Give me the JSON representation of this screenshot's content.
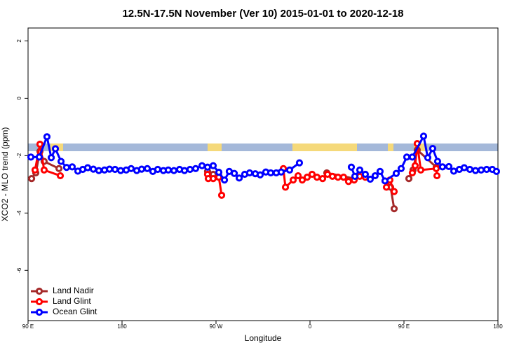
{
  "chart_data": {
    "type": "line",
    "title": "12.5N-17.5N November (Ver 10)   2015-01-01 to 2020-12-18",
    "xlabel": "Longitude",
    "ylabel": "XCO2 - MLO trend (ppm)",
    "xlim": [
      90,
      540
    ],
    "ylim": [
      -7.75,
      2.45
    ],
    "xticks": [
      {
        "value": 90,
        "label": "90 E"
      },
      180,
      {
        "value": 270,
        "label": "90 W"
      },
      {
        "value": 360,
        "label": "0"
      },
      {
        "value": 450,
        "label": "90 E"
      },
      {
        "value": 540,
        "label": "180"
      }
    ],
    "yticks": [
      2,
      0,
      -2,
      -4,
      -6
    ],
    "legend": "bottom-left",
    "series": [
      {
        "name": "Land Nadir",
        "color": "#a52a2a",
        "x": [
          93.4,
          97.4,
          101.4,
          105.4,
          119.6,
          200,
          261.9,
          267.3,
          272.7,
          300,
          376.1,
          402.3,
          420,
          437.2,
          440.6,
          445,
          454.7,
          458.7,
          462.7,
          480.9
        ],
        "values": [
          -2.8,
          -2.6,
          -1.85,
          -2.2,
          -2.45,
          null,
          -2.55,
          -2.65,
          -2.7,
          null,
          -2.6,
          -2.8,
          null,
          -3.1,
          -3.85,
          null,
          -2.8,
          -2.5,
          -1.8,
          -2.4
        ]
      },
      {
        "name": "Land Glint",
        "color": "#ff0000",
        "x": [
          96.7,
          101.4,
          105.4,
          120.9,
          200,
          261.9,
          262.6,
          267.3,
          272.7,
          275.4,
          330,
          334.5,
          336.5,
          343.9,
          348.6,
          352.6,
          357.3,
          362,
          366.7,
          372.1,
          376.8,
          381.5,
          386.8,
          392.2,
          396.9,
          402.3,
          407.7,
          413,
          425,
          433.2,
          436.5,
          440.6,
          445,
          458,
          460.7,
          462.7,
          466.1,
          480.9,
          481.6
        ],
        "values": [
          -2.5,
          -1.6,
          -2.5,
          -2.7,
          null,
          -2.65,
          -2.8,
          -2.8,
          -2.75,
          -3.38,
          null,
          -2.45,
          -3.1,
          -2.85,
          -2.7,
          -2.85,
          -2.75,
          -2.65,
          -2.75,
          -2.8,
          -2.65,
          -2.72,
          -2.75,
          -2.75,
          -2.9,
          -2.85,
          -2.72,
          -2.75,
          null,
          -3.1,
          -2.85,
          -3.25,
          null,
          -2.6,
          -2.35,
          -1.58,
          -2.5,
          -2.45,
          -2.7
        ]
      },
      {
        "name": "Ocean Glint",
        "color": "#0000ff",
        "x": [
          92.7,
          100.7,
          108.1,
          112.2,
          116.2,
          121.6,
          126.9,
          132.3,
          137.7,
          142.4,
          147.1,
          152.5,
          157.8,
          163.2,
          168,
          173.3,
          178.7,
          184,
          188.7,
          194.1,
          198.8,
          204.2,
          209.5,
          214.2,
          219.6,
          224.3,
          229.7,
          235.1,
          239.8,
          245.1,
          250.5,
          256.6,
          261.9,
          267.3,
          272.7,
          278.1,
          282.7,
          287.5,
          292.2,
          297.5,
          302.2,
          307.6,
          312.3,
          317.7,
          322.4,
          327.7,
          332.4,
          340.5,
          349.9,
          400,
          399.6,
          403,
          407.7,
          413,
          417.7,
          422.4,
          427.1,
          431.8,
          442.6,
          447.3,
          452.7,
          458,
          468.8,
          472.8,
          477.5,
          482.2,
          486.9,
          493,
          497.7,
          503,
          507.7,
          513.1,
          518.5,
          523.9,
          529.2,
          534.6,
          538.6
        ],
        "values": [
          -2.05,
          -2.05,
          -1.34,
          -2.07,
          -1.76,
          -2.2,
          -2.41,
          -2.39,
          -2.54,
          -2.48,
          -2.42,
          -2.47,
          -2.52,
          -2.5,
          -2.47,
          -2.48,
          -2.52,
          -2.5,
          -2.45,
          -2.52,
          -2.47,
          -2.45,
          -2.55,
          -2.48,
          -2.52,
          -2.5,
          -2.52,
          -2.48,
          -2.52,
          -2.48,
          -2.45,
          -2.35,
          -2.4,
          -2.35,
          -2.58,
          -2.85,
          -2.55,
          -2.62,
          -2.78,
          -2.65,
          -2.6,
          -2.63,
          -2.67,
          -2.57,
          -2.6,
          -2.6,
          -2.57,
          -2.5,
          -2.25,
          null,
          -2.4,
          -2.72,
          -2.5,
          -2.65,
          -2.82,
          -2.7,
          -2.55,
          -2.88,
          -2.62,
          -2.45,
          -2.05,
          -2.05,
          -1.32,
          -2.07,
          -1.75,
          -2.2,
          -2.39,
          -2.38,
          -2.54,
          -2.48,
          -2.42,
          -2.48,
          -2.52,
          -2.5,
          -2.48,
          -2.48,
          -2.55
        ]
      }
    ]
  }
}
